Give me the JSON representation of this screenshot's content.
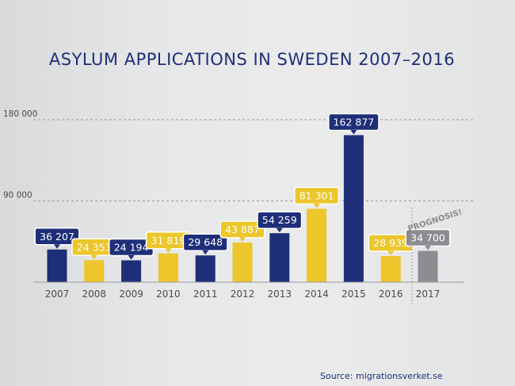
{
  "chart_data": {
    "type": "bar",
    "title": "ASYLUM APPLICATIONS IN SWEDEN 2007–2016",
    "categories": [
      "2007",
      "2008",
      "2009",
      "2010",
      "2011",
      "2012",
      "2013",
      "2014",
      "2015",
      "2016",
      "2017"
    ],
    "values": [
      36207,
      24353,
      24194,
      31819,
      29648,
      43887,
      54259,
      81301,
      162877,
      28939,
      34700
    ],
    "value_labels": [
      "36 207",
      "24 353",
      "24 194",
      "31 819",
      "29 648",
      "43 887",
      "54 259",
      "81 301",
      "162 877",
      "28 939",
      "34 700"
    ],
    "bar_colors": [
      "#1e2f78",
      "#ecc62a",
      "#1e2f78",
      "#ecc62a",
      "#1e2f78",
      "#ecc62a",
      "#1e2f78",
      "#ecc62a",
      "#1e2f78",
      "#ecc62a",
      "#8d8c91"
    ],
    "y_ticks": [
      90000,
      180000
    ],
    "y_tick_labels": [
      "90 000",
      "180 000"
    ],
    "ylim": [
      0,
      190000
    ],
    "grid": "dashed at ticks",
    "annotation": "PROGNOSIS!",
    "source": "Source: migrationsverket.se"
  }
}
